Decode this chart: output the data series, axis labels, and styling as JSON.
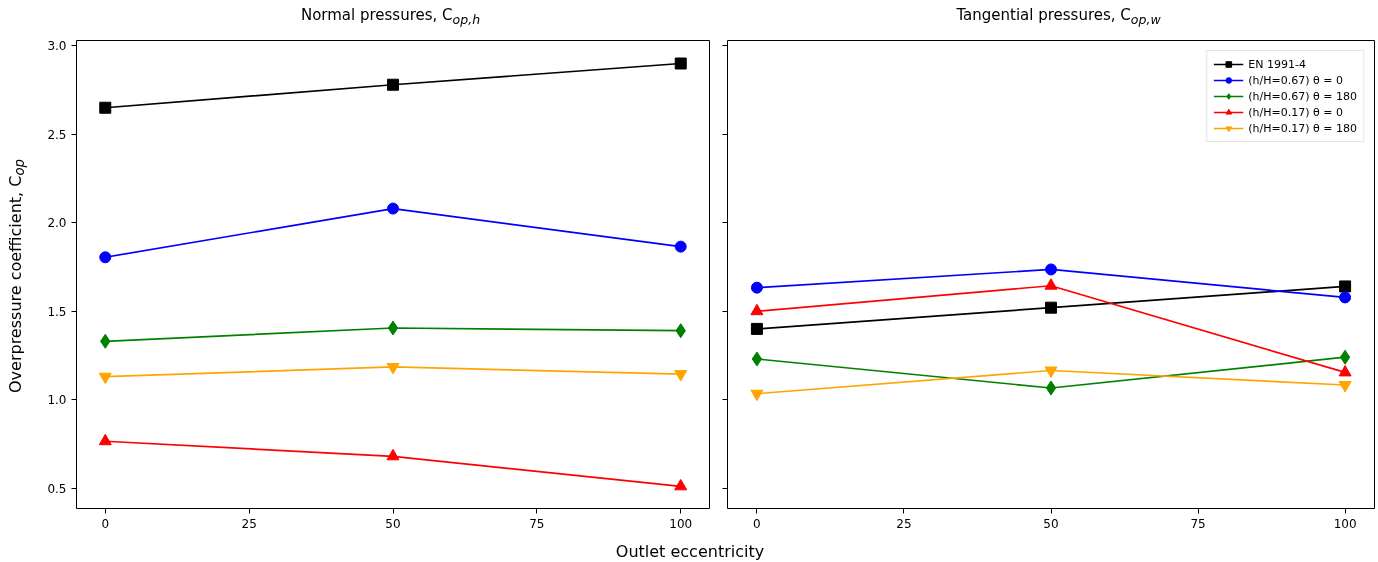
{
  "chart_data": [
    {
      "type": "line",
      "title": "Normal pressures, C$_{op,h}$",
      "xlabel": "Outlet eccentricity",
      "ylabel": "Overpressure coefficient, C$_{op}$",
      "x": [
        0,
        50,
        100
      ],
      "xlim": [
        -5,
        105
      ],
      "xticks": [
        0,
        25,
        50,
        75,
        100
      ],
      "ylim": [
        0.385,
        3.03
      ],
      "yticks": [
        {
          "value": 0.5,
          "label": "0.5"
        },
        {
          "value": 1,
          "label": "1.0"
        },
        {
          "value": 1.5,
          "label": "1.5"
        },
        {
          "value": 2,
          "label": "2.0"
        },
        {
          "value": 2.5,
          "label": "2.5"
        },
        {
          "value": 3,
          "label": "3.0"
        }
      ],
      "grid": false,
      "series": [
        {
          "color": "#000000",
          "marker": "square",
          "values": [
            2.65,
            2.78,
            2.9
          ]
        },
        {
          "color": "#0000ff",
          "marker": "circle",
          "values": [
            1.805,
            2.08,
            1.865
          ]
        },
        {
          "color": "#008000",
          "marker": "diamond",
          "values": [
            1.33,
            1.405,
            1.39
          ]
        },
        {
          "color": "#ff0000",
          "marker": "triangle",
          "values": [
            0.765,
            0.68,
            0.51
          ]
        },
        {
          "color": "#ffa500",
          "marker": "triangle_down",
          "values": [
            1.13,
            1.185,
            1.145
          ]
        }
      ]
    },
    {
      "type": "line",
      "title": "Tangential pressures, C$_{op,w}$",
      "x": [
        0,
        50,
        100
      ],
      "xlim": [
        -5,
        105
      ],
      "xticks": [
        0,
        25,
        50,
        75,
        100
      ],
      "ylim": [
        0.385,
        3.03
      ],
      "yticks": [
        0.5,
        1,
        1.5,
        2,
        2.5,
        3
      ],
      "tick_labels": "x",
      "grid": false,
      "legend": "top right",
      "series": [
        {
          "name": "EN 1991-4",
          "color": "#000000",
          "marker": "square",
          "values": [
            1.4,
            1.52,
            1.64
          ]
        },
        {
          "name": "(h/H=0.67) θ = 0",
          "color": "#0000ff",
          "marker": "circle",
          "values": [
            1.633,
            1.736,
            1.578
          ]
        },
        {
          "name": "(h/H=0.67) θ = 180",
          "color": "#008000",
          "marker": "diamond",
          "values": [
            1.23,
            1.066,
            1.24
          ]
        },
        {
          "name": "(h/H=0.17) θ = 0",
          "color": "#ff0000",
          "marker": "triangle",
          "values": [
            1.5,
            1.644,
            1.154
          ]
        },
        {
          "name": "(h/H=0.17) θ = 180",
          "color": "#ffa500",
          "marker": "triangle_down",
          "values": [
            1.034,
            1.165,
            1.083
          ]
        }
      ]
    }
  ]
}
